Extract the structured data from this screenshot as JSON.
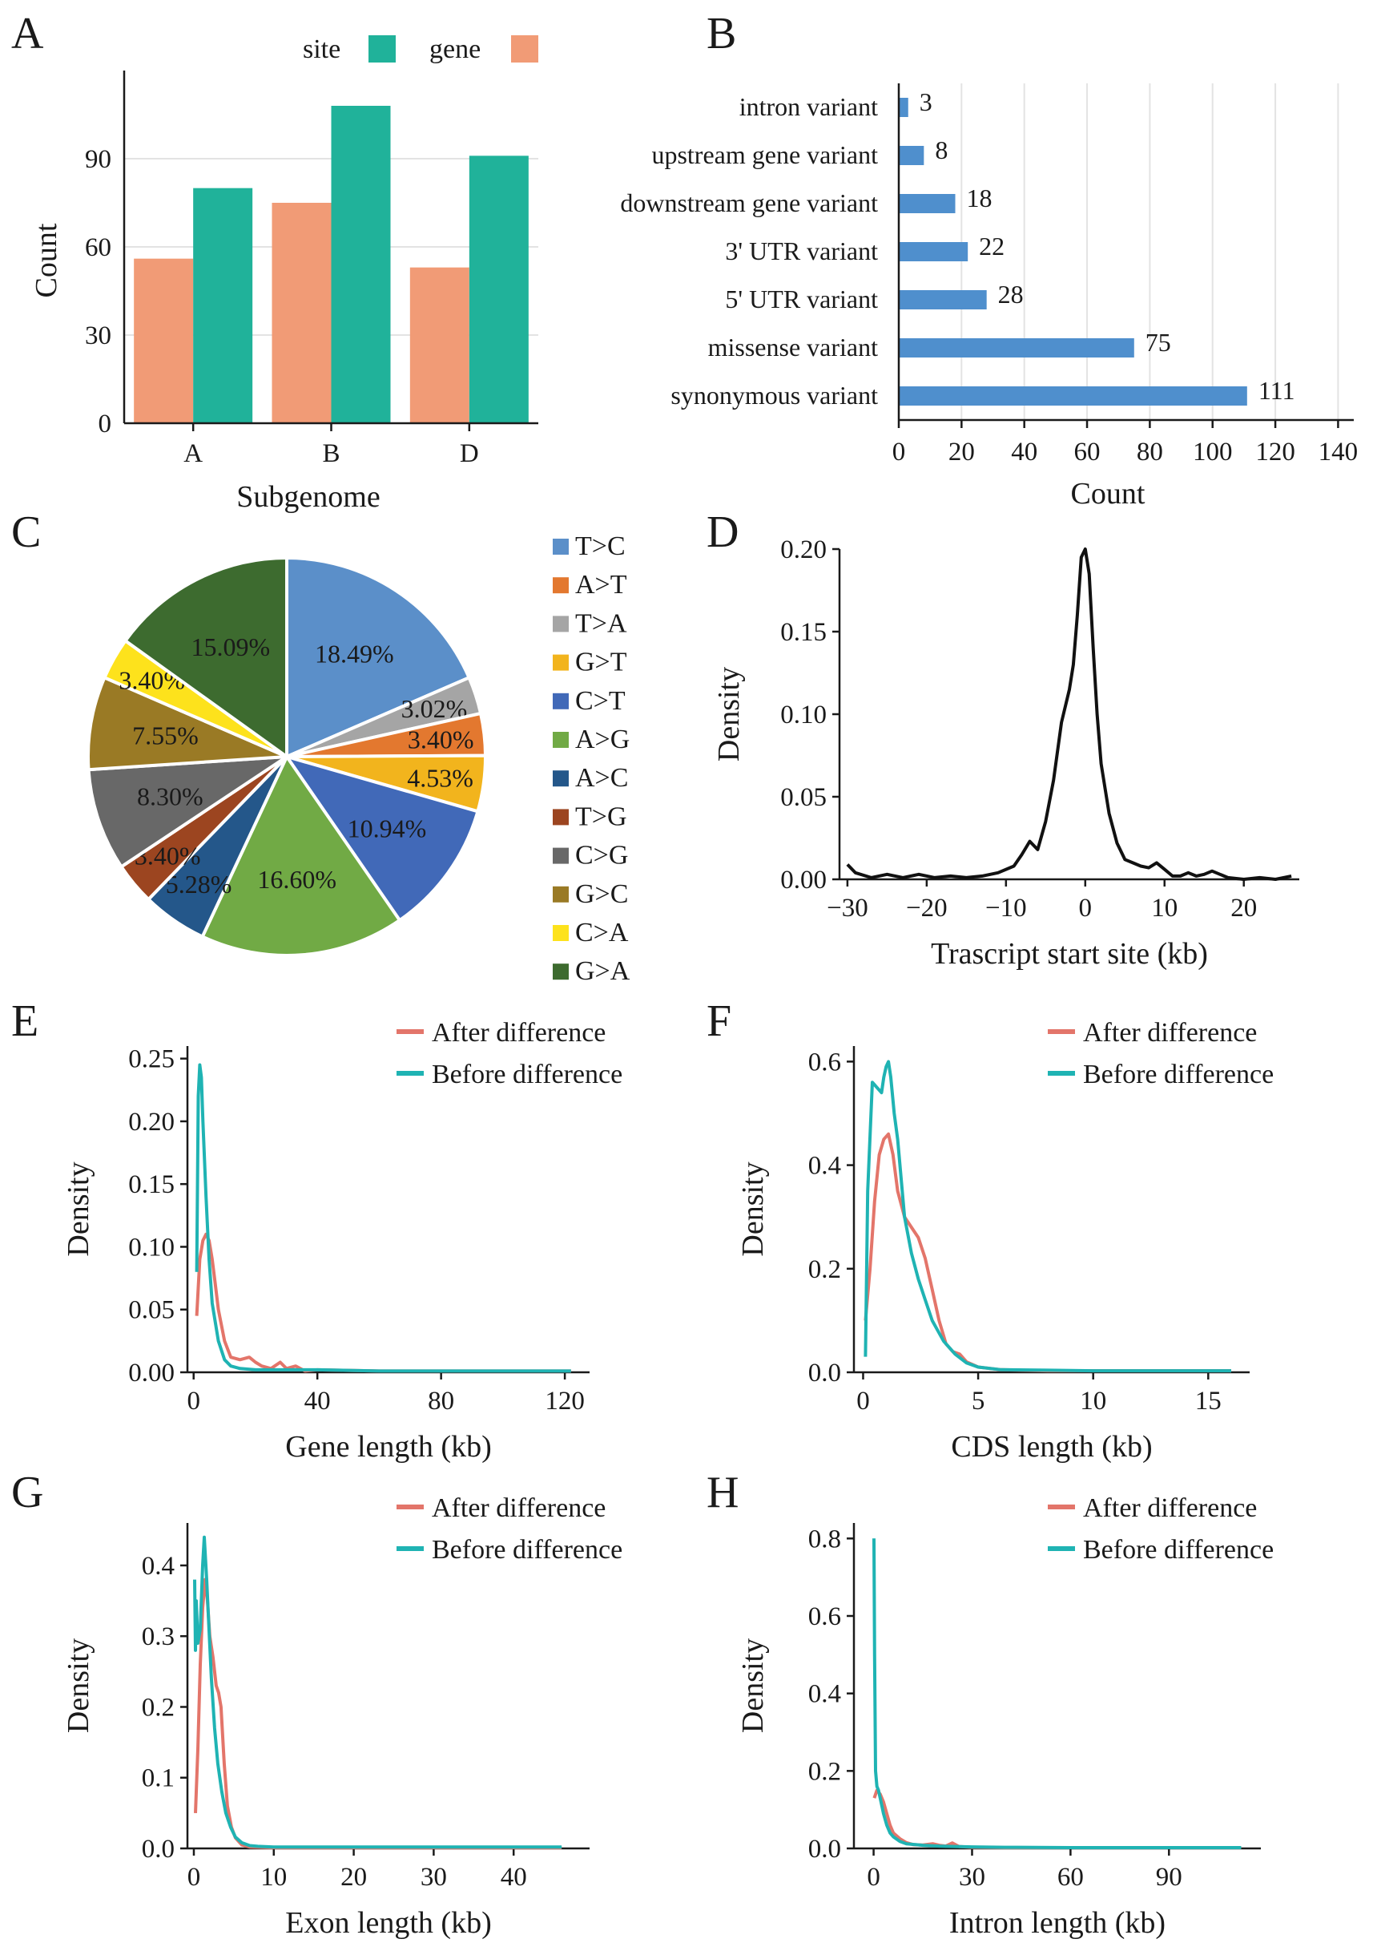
{
  "chart_data": [
    {
      "panel": "A",
      "type": "bar",
      "xlabel": "Subgenome",
      "ylabel": "Count",
      "categories": [
        "A",
        "B",
        "D"
      ],
      "series": [
        {
          "name": "site",
          "color": "#20b29a",
          "values": [
            80,
            108,
            91
          ]
        },
        {
          "name": "gene",
          "color": "#f19b76",
          "values": [
            56,
            75,
            53
          ]
        }
      ],
      "yticks": [
        0,
        30,
        60,
        90
      ],
      "ylim": [
        0,
        120
      ],
      "grid": true,
      "legend_position": "top"
    },
    {
      "panel": "B",
      "type": "bar",
      "orientation": "horizontal",
      "xlabel": "Count",
      "color": "#4f8fcd",
      "categories": [
        "intron variant",
        "upstream gene variant",
        "downstream gene variant",
        "3' UTR variant",
        "5' UTR variant",
        "missense variant",
        "synonymous variant"
      ],
      "values": [
        3,
        8,
        18,
        22,
        28,
        75,
        111
      ],
      "xticks": [
        0,
        20,
        40,
        60,
        80,
        100,
        120,
        140
      ],
      "xlim": [
        0,
        145
      ],
      "grid": true
    },
    {
      "panel": "C",
      "type": "pie",
      "slices": [
        {
          "label": "T>C",
          "value": 18.49,
          "text": "18.49%",
          "color": "#5b8fc9"
        },
        {
          "label": "T>A",
          "value": 3.02,
          "text": "3.02%",
          "color": "#a5a5a5"
        },
        {
          "label": "A>T",
          "value": 3.4,
          "text": "3.40%",
          "color": "#e3782f"
        },
        {
          "label": "G>T",
          "value": 4.53,
          "text": "4.53%",
          "color": "#f2b41d"
        },
        {
          "label": "C>T",
          "value": 10.94,
          "text": "10.94%",
          "color": "#4169b8"
        },
        {
          "label": "A>G",
          "value": 16.6,
          "text": "16.60%",
          "color": "#71aa45"
        },
        {
          "label": "A>C",
          "value": 5.28,
          "text": "5.28%",
          "color": "#24578a"
        },
        {
          "label": "T>G",
          "value": 3.4,
          "text": "3.40%",
          "color": "#9c4520"
        },
        {
          "label": "C>G",
          "value": 8.3,
          "text": "8.30%",
          "color": "#686868"
        },
        {
          "label": "G>C",
          "value": 7.55,
          "text": "7.55%",
          "color": "#9a7a25"
        },
        {
          "label": "C>A",
          "value": 3.4,
          "text": "3.40%",
          "color": "#fde21c"
        },
        {
          "label": "G>A",
          "value": 15.09,
          "text": "15.09%",
          "color": "#3d6b2f"
        }
      ],
      "legend": [
        {
          "label": "T>C",
          "color": "#5b8fc9"
        },
        {
          "label": "A>T",
          "color": "#e3782f"
        },
        {
          "label": "T>A",
          "color": "#a5a5a5"
        },
        {
          "label": "G>T",
          "color": "#f2b41d"
        },
        {
          "label": "C>T",
          "color": "#4169b8"
        },
        {
          "label": "A>G",
          "color": "#71aa45"
        },
        {
          "label": "A>C",
          "color": "#24578a"
        },
        {
          "label": "T>G",
          "color": "#9c4520"
        },
        {
          "label": "C>G",
          "color": "#686868"
        },
        {
          "label": "G>C",
          "color": "#9a7a25"
        },
        {
          "label": "C>A",
          "color": "#fde21c"
        },
        {
          "label": "G>A",
          "color": "#3d6b2f"
        }
      ],
      "legend_position": "right"
    },
    {
      "panel": "D",
      "type": "line",
      "xlabel": "Trascript start site (kb)",
      "ylabel": "Density",
      "xlim": [
        -31,
        27
      ],
      "ylim": [
        0,
        0.2
      ],
      "xticks": [
        -30,
        -20,
        -10,
        0,
        10,
        20
      ],
      "xtick_labels": [
        "−30",
        "−20",
        "−10",
        "0",
        "10",
        "20"
      ],
      "yticks": [
        0.0,
        0.05,
        0.1,
        0.15,
        0.2
      ],
      "ytick_labels": [
        "0.00",
        "0.05",
        "0.10",
        "0.15",
        "0.20"
      ],
      "series": [
        {
          "name": "density",
          "color": "#111111",
          "x": [
            -30,
            -29,
            -27,
            -25,
            -23,
            -21,
            -19,
            -17,
            -15,
            -13,
            -11,
            -9,
            -8,
            -7,
            -6,
            -5,
            -4,
            -3,
            -2,
            -1.5,
            -1,
            -0.5,
            0,
            0.5,
            1,
            1.5,
            2,
            3,
            4,
            5,
            6,
            7,
            8,
            9,
            10,
            11,
            12,
            13,
            14,
            15,
            16,
            17,
            18,
            20,
            22,
            24,
            26
          ],
          "y": [
            0.009,
            0.004,
            0.001,
            0.003,
            0.001,
            0.003,
            0.001,
            0.002,
            0.001,
            0.002,
            0.004,
            0.008,
            0.015,
            0.023,
            0.018,
            0.035,
            0.06,
            0.095,
            0.115,
            0.13,
            0.16,
            0.195,
            0.2,
            0.185,
            0.14,
            0.1,
            0.07,
            0.04,
            0.022,
            0.012,
            0.01,
            0.008,
            0.007,
            0.01,
            0.006,
            0.002,
            0.002,
            0.004,
            0.002,
            0.003,
            0.005,
            0.003,
            0.001,
            0.0,
            0.001,
            0.0,
            0.002
          ]
        }
      ]
    },
    {
      "panel": "E",
      "type": "line",
      "xlabel": "Gene length (kb)",
      "ylabel": "Density",
      "xlim": [
        -2,
        128
      ],
      "ylim": [
        0,
        0.26
      ],
      "xticks": [
        0,
        40,
        80,
        120
      ],
      "yticks": [
        0.0,
        0.05,
        0.1,
        0.15,
        0.2,
        0.25
      ],
      "ytick_labels": [
        "0.00",
        "0.05",
        "0.10",
        "0.15",
        "0.20",
        "0.25"
      ],
      "series": [
        {
          "name": "After difference",
          "color": "#e3756a",
          "x": [
            1,
            2,
            3,
            4,
            5,
            6,
            7,
            8,
            10,
            12,
            15,
            18,
            20,
            22,
            25,
            28,
            30,
            33,
            36,
            40,
            60,
            80,
            100,
            122
          ],
          "y": [
            0.045,
            0.09,
            0.105,
            0.11,
            0.105,
            0.09,
            0.07,
            0.05,
            0.025,
            0.012,
            0.01,
            0.012,
            0.008,
            0.005,
            0.003,
            0.008,
            0.003,
            0.005,
            0.001,
            0.002,
            0.001,
            0.001,
            0.001,
            0.001
          ]
        },
        {
          "name": "Before difference",
          "color": "#1fb3b3",
          "x": [
            1,
            1.5,
            2,
            2.5,
            3,
            4,
            5,
            6,
            8,
            10,
            12,
            15,
            20,
            30,
            40,
            60,
            80,
            100,
            122
          ],
          "y": [
            0.08,
            0.22,
            0.245,
            0.235,
            0.2,
            0.14,
            0.09,
            0.055,
            0.025,
            0.01,
            0.005,
            0.003,
            0.002,
            0.002,
            0.002,
            0.001,
            0.001,
            0.001,
            0.001
          ]
        }
      ],
      "legend_position": "top-right"
    },
    {
      "panel": "F",
      "type": "line",
      "xlabel": "CDS length (kb)",
      "ylabel": "Density",
      "xlim": [
        -0.4,
        16.8
      ],
      "ylim": [
        0,
        0.63
      ],
      "xticks": [
        0,
        5,
        10,
        15
      ],
      "yticks": [
        0.0,
        0.2,
        0.4,
        0.6
      ],
      "ytick_labels": [
        "0.0",
        "0.2",
        "0.4",
        "0.6"
      ],
      "series": [
        {
          "name": "After difference",
          "color": "#e3756a",
          "x": [
            0.1,
            0.3,
            0.5,
            0.7,
            0.9,
            1.1,
            1.3,
            1.5,
            1.8,
            2.1,
            2.4,
            2.7,
            3.0,
            3.3,
            3.6,
            3.9,
            4.2,
            4.5,
            5,
            6,
            8,
            10,
            12,
            16
          ],
          "y": [
            0.1,
            0.2,
            0.33,
            0.42,
            0.45,
            0.46,
            0.42,
            0.35,
            0.3,
            0.28,
            0.26,
            0.22,
            0.16,
            0.1,
            0.055,
            0.04,
            0.035,
            0.02,
            0.01,
            0.005,
            0.003,
            0.003,
            0.003,
            0.003
          ]
        },
        {
          "name": "Before difference",
          "color": "#1fb3b3",
          "x": [
            0.1,
            0.2,
            0.4,
            0.6,
            0.8,
            0.9,
            1.0,
            1.1,
            1.2,
            1.35,
            1.5,
            1.8,
            2.1,
            2.4,
            2.7,
            3.0,
            3.5,
            4,
            4.5,
            5,
            6,
            8,
            10,
            12,
            16
          ],
          "y": [
            0.03,
            0.35,
            0.56,
            0.55,
            0.54,
            0.57,
            0.59,
            0.6,
            0.57,
            0.5,
            0.45,
            0.3,
            0.23,
            0.18,
            0.14,
            0.1,
            0.06,
            0.035,
            0.018,
            0.01,
            0.005,
            0.004,
            0.003,
            0.003,
            0.003
          ]
        }
      ],
      "legend_position": "top-right"
    },
    {
      "panel": "G",
      "type": "line",
      "xlabel": "Exon length (kb)",
      "ylabel": "Density",
      "xlim": [
        -0.8,
        49.5
      ],
      "ylim": [
        0,
        0.46
      ],
      "xticks": [
        0,
        10,
        20,
        30,
        40
      ],
      "yticks": [
        0.0,
        0.1,
        0.2,
        0.3,
        0.4
      ],
      "ytick_labels": [
        "0.0",
        "0.1",
        "0.2",
        "0.3",
        "0.4"
      ],
      "series": [
        {
          "name": "After difference",
          "color": "#e3756a",
          "x": [
            0.2,
            0.5,
            0.8,
            1.1,
            1.4,
            1.7,
            2.0,
            2.4,
            2.8,
            3.1,
            3.4,
            3.8,
            4.2,
            4.7,
            5.2,
            6,
            7,
            10,
            20,
            30,
            40,
            46
          ],
          "y": [
            0.05,
            0.14,
            0.26,
            0.34,
            0.38,
            0.35,
            0.3,
            0.27,
            0.23,
            0.22,
            0.2,
            0.12,
            0.06,
            0.03,
            0.015,
            0.005,
            0.002,
            0.001,
            0.001,
            0.001,
            0.001,
            0.001
          ]
        },
        {
          "name": "Before difference",
          "color": "#1fb3b3",
          "x": [
            0.1,
            0.2,
            0.3,
            0.5,
            0.8,
            1.1,
            1.3,
            1.6,
            1.9,
            2.2,
            2.6,
            3.0,
            3.5,
            4.0,
            4.6,
            5.2,
            6,
            7,
            8,
            10,
            20,
            30,
            40,
            46
          ],
          "y": [
            0.38,
            0.28,
            0.35,
            0.29,
            0.31,
            0.4,
            0.44,
            0.38,
            0.31,
            0.24,
            0.17,
            0.12,
            0.08,
            0.05,
            0.03,
            0.016,
            0.008,
            0.004,
            0.003,
            0.002,
            0.002,
            0.002,
            0.002,
            0.002
          ]
        }
      ],
      "legend_position": "top-right"
    },
    {
      "panel": "H",
      "type": "line",
      "xlabel": "Intron length (kb)",
      "ylabel": "Density",
      "xlim": [
        -6,
        118
      ],
      "ylim": [
        0,
        0.84
      ],
      "xticks": [
        0,
        30,
        60,
        90
      ],
      "yticks": [
        0.0,
        0.2,
        0.4,
        0.6,
        0.8
      ],
      "ytick_labels": [
        "0.0",
        "0.2",
        "0.4",
        "0.6",
        "0.8"
      ],
      "series": [
        {
          "name": "After difference",
          "color": "#e3756a",
          "x": [
            0.2,
            1,
            2,
            3,
            4,
            5,
            6,
            8,
            10,
            12,
            15,
            18,
            20,
            22,
            24,
            26,
            30,
            40,
            60,
            90,
            112
          ],
          "y": [
            0.13,
            0.15,
            0.14,
            0.12,
            0.09,
            0.06,
            0.04,
            0.025,
            0.015,
            0.01,
            0.009,
            0.012,
            0.008,
            0.006,
            0.014,
            0.005,
            0.003,
            0.002,
            0.002,
            0.002,
            0.002
          ]
        },
        {
          "name": "Before difference",
          "color": "#1fb3b3",
          "x": [
            0.1,
            0.3,
            0.6,
            1.0,
            1.5,
            2,
            3,
            4,
            5,
            6,
            8,
            10,
            15,
            20,
            30,
            40,
            60,
            90,
            112
          ],
          "y": [
            0.8,
            0.5,
            0.2,
            0.16,
            0.15,
            0.13,
            0.09,
            0.06,
            0.04,
            0.03,
            0.018,
            0.012,
            0.008,
            0.006,
            0.004,
            0.003,
            0.002,
            0.002,
            0.002
          ]
        }
      ],
      "legend_position": "top-right"
    }
  ]
}
